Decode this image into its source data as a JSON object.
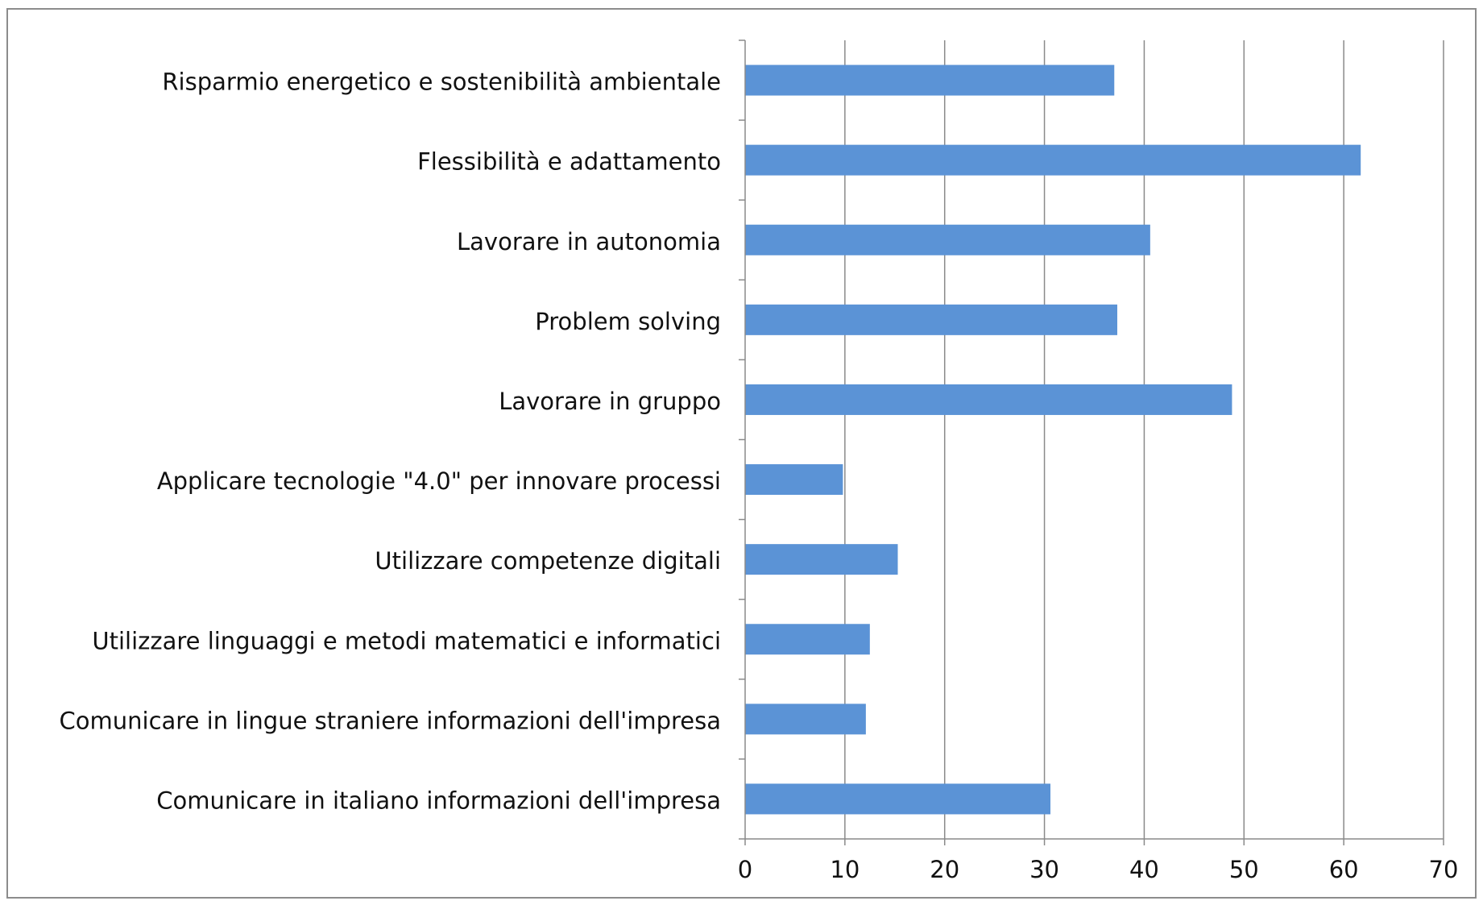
{
  "chart_data": {
    "type": "bar",
    "orientation": "horizontal",
    "categories": [
      "Risparmio energetico e sostenibilità ambientale",
      "Flessibilità e adattamento",
      "Lavorare in autonomia",
      "Problem solving",
      "Lavorare in gruppo",
      "Applicare tecnologie \"4.0\" per innovare processi",
      "Utilizzare competenze digitali",
      "Utilizzare linguaggi e metodi matematici e informatici",
      "Comunicare in lingue straniere informazioni dell'impresa",
      "Comunicare in italiano informazioni dell'impresa"
    ],
    "values": [
      37,
      61.7,
      40.6,
      37.3,
      48.8,
      9.8,
      15.3,
      12.5,
      12.1,
      30.6
    ],
    "xlim": [
      0,
      70
    ],
    "xticks": [
      0,
      10,
      20,
      30,
      40,
      50,
      60,
      70
    ],
    "title": "",
    "xlabel": "",
    "ylabel": "",
    "grid": "vertical",
    "legend": "none",
    "bar_color": "#5b93d6",
    "grid_color": "#8a8a8a"
  }
}
